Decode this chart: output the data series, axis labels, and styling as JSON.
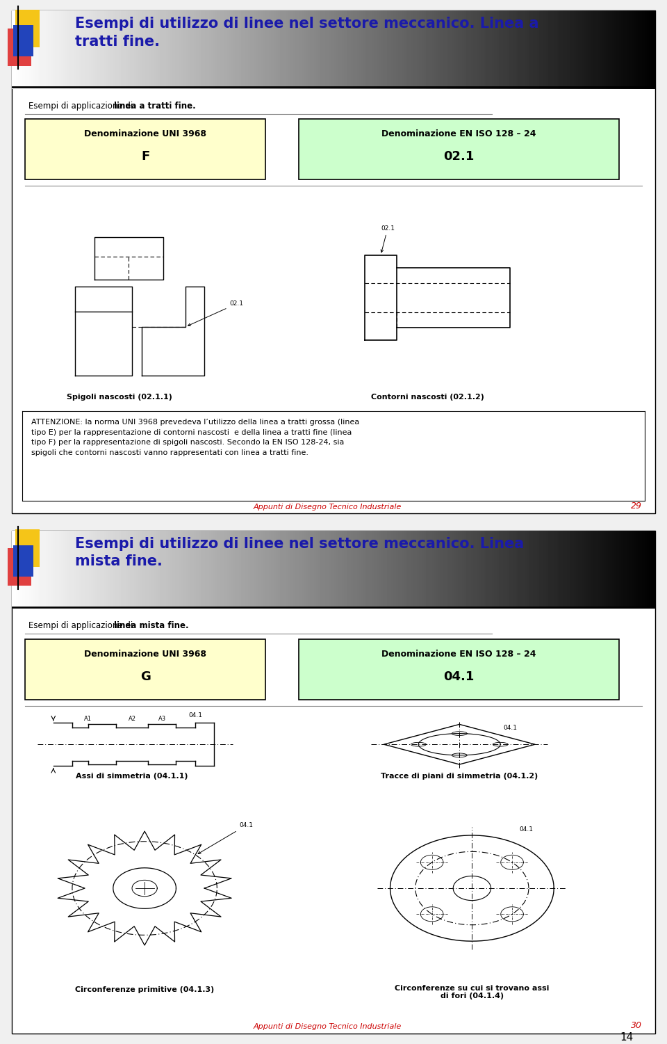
{
  "page_bg": "#f0f0f0",
  "page1_title": "Esempi di utilizzo di linee nel settore meccanico. Linea a\ntratti fine.",
  "page1_subtitle_normal": "Esempi di applicazione di ",
  "page1_subtitle_bold": "linea a tratti fine.",
  "box1_left_title": "Denominazione UNI 3968",
  "box1_left_code": "F",
  "box1_right_title": "Denominazione EN ISO 128 – 24",
  "box1_right_code": "02.1",
  "box1_left_bg": "#ffffcc",
  "box1_right_bg": "#ccffcc",
  "label_spigoli": "Spigoli nascosti (02.1.1)",
  "label_contorni": "Contorni nascosti (02.1.2)",
  "footer1_italic": "Appunti di Disegno Tecnico Industriale",
  "footer1_num": "29",
  "page2_title": "Esempi di utilizzo di linee nel settore meccanico. Linea\nmista fine.",
  "page2_subtitle_normal": "Esempi di applicazione di ",
  "page2_subtitle_bold": "linea mista fine.",
  "box2_left_title": "Denominazione UNI 3968",
  "box2_left_code": "G",
  "box2_right_title": "Denominazione EN ISO 128 – 24",
  "box2_right_code": "04.1",
  "label_assi": "Assi di simmetria (04.1.1)",
  "label_tracce": "Tracce di piani di simmetria (04.1.2)",
  "label_circonf": "Circonferenze primitive (04.1.3)",
  "label_circfori": "Circonferenze su cui si trovano assi\ndi fori (04.1.4)",
  "footer2_italic": "Appunti di Disegno Tecnico Industriale",
  "footer2_num": "30",
  "page_num": "14",
  "title_color": "#1a1aaa",
  "footer_color": "#cc0000",
  "logo_yellow": "#f5c518",
  "logo_red": "#e04040",
  "logo_blue": "#2244bb",
  "header_line_color": "#000000",
  "separator_color": "#aaaaaa",
  "box_border": "#000000"
}
